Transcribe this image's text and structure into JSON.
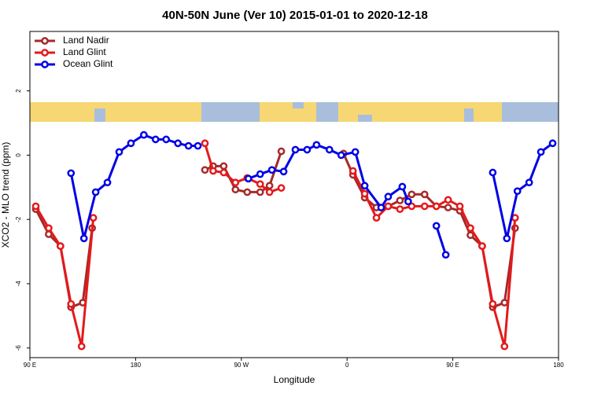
{
  "chart_data": {
    "type": "line",
    "title": "40N-50N June (Ver 10)   2015-01-01 to 2020-12-18",
    "xlabel": "Longitude",
    "ylabel": "XCO2 - MLO trend (ppm)",
    "xlim": [
      90,
      540
    ],
    "ylim": [
      -6.3,
      3.85
    ],
    "xticks": [
      {
        "value": 90,
        "label": "90 E"
      },
      180,
      {
        "value": 270,
        "label": "90 W"
      },
      {
        "value": 360,
        "label": "0"
      },
      {
        "value": 450,
        "label": "90 E"
      },
      {
        "value": 540,
        "label": "180"
      }
    ],
    "yticks": [
      -6,
      -4,
      -2,
      0,
      2
    ],
    "legend": "top-left",
    "series": [
      {
        "name": "Land Nadir",
        "color": "#a52a2a",
        "x": [
          95,
          106,
          116,
          125,
          135,
          143,
          null,
          239,
          246,
          255,
          265,
          275,
          286,
          294,
          304,
          null,
          357,
          365,
          375,
          385,
          395,
          405,
          415,
          426,
          436,
          446,
          456,
          465,
          475,
          484,
          494,
          503
        ],
        "values": [
          -1.68,
          -2.46,
          -2.83,
          -4.73,
          -4.59,
          -2.27,
          null,
          -0.46,
          -0.34,
          -0.34,
          -1.07,
          -1.15,
          -1.15,
          -0.95,
          0.12,
          null,
          0.05,
          -0.61,
          -1.32,
          -1.63,
          -1.59,
          -1.41,
          -1.22,
          -1.22,
          -1.59,
          -1.63,
          -1.73,
          -2.49,
          -2.83,
          -4.73,
          -4.59,
          -2.27
        ]
      },
      {
        "name": "Land Glint",
        "color": "#e31a1c",
        "x": [
          95,
          106,
          116,
          125,
          134,
          144,
          null,
          239,
          246,
          255,
          265,
          275,
          286,
          294,
          304,
          null,
          365,
          375,
          385,
          395,
          405,
          415,
          426,
          436,
          446,
          456,
          465,
          475,
          484,
          494,
          503
        ],
        "values": [
          -1.59,
          -2.27,
          -2.83,
          -4.63,
          -5.95,
          -1.95,
          null,
          0.37,
          -0.49,
          -0.54,
          -0.85,
          -0.71,
          -0.9,
          -1.15,
          -1.02,
          null,
          -0.49,
          -1.2,
          -1.95,
          -1.59,
          -1.68,
          -1.59,
          -1.59,
          -1.59,
          -1.39,
          -1.59,
          -2.27,
          -2.83,
          -4.63,
          -5.95,
          -1.95
        ]
      },
      {
        "name": "Ocean Glint",
        "color": "#0000e6",
        "x": [
          125,
          136,
          146,
          156,
          166,
          176,
          187,
          197,
          206,
          216,
          225,
          233,
          null,
          276,
          286,
          296,
          306,
          316,
          326,
          334,
          345,
          355,
          367,
          375,
          389,
          395,
          407,
          412,
          null,
          436,
          444,
          null,
          484,
          496,
          505,
          515,
          525,
          535
        ],
        "values": [
          -0.56,
          -2.59,
          -1.15,
          -0.85,
          0.1,
          0.37,
          0.63,
          0.49,
          0.49,
          0.37,
          0.29,
          0.29,
          null,
          -0.73,
          -0.59,
          -0.46,
          -0.51,
          0.17,
          0.17,
          0.32,
          0.17,
          0,
          0.1,
          -0.95,
          -1.63,
          -1.29,
          -0.98,
          -1.44,
          null,
          -2.2,
          -3.1,
          null,
          -0.54,
          -2.59,
          -1.12,
          -0.85,
          0.1,
          0.37
        ]
      }
    ]
  }
}
